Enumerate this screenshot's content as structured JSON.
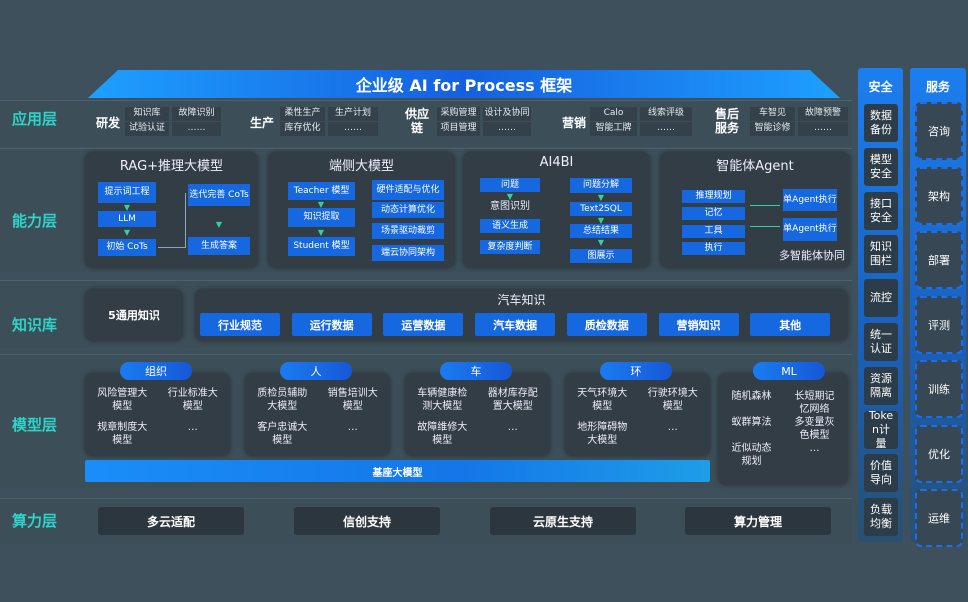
{
  "title": "企业级 AI for Process 框架",
  "layers": {
    "app": "应用层",
    "capability": "能力层",
    "knowledge": "知识库",
    "model": "模型层",
    "compute": "算力层"
  },
  "app_groups": [
    {
      "name": "研发",
      "items": [
        "知识库",
        "故障识别",
        "试验认证",
        "……"
      ]
    },
    {
      "name": "生产",
      "items": [
        "柔性生产",
        "生产计划",
        "库存优化",
        "……"
      ]
    },
    {
      "name": "供应链",
      "items": [
        "采购管理",
        "设计及协同",
        "项目管理",
        "……"
      ]
    },
    {
      "name": "营销",
      "items": [
        "Calo",
        "线索评级",
        "智能工牌",
        "……"
      ]
    },
    {
      "name": "售后服务",
      "items": [
        "车智见",
        "故障预警",
        "智能诊修",
        "……"
      ]
    }
  ],
  "capabilities": {
    "rag": {
      "title": "RAG+推理大模型",
      "boxes": [
        "提示词工程",
        "LLM",
        "初始 CoTs",
        "迭代完善 CoTs",
        "生成答案"
      ]
    },
    "edge": {
      "title": "端侧大模型",
      "boxes": [
        "Teacher 模型",
        "知识提取",
        "Student 模型",
        "硬件适配与优化",
        "动态计算优化",
        "场景驱动裁剪",
        "端云协同架构"
      ]
    },
    "ai4bi": {
      "title": "AI4BI",
      "boxes": [
        "问题",
        "意图识别",
        "语义生成",
        "复杂度判断",
        "问题分解",
        "Text2SQL",
        "总结结果",
        "图展示"
      ]
    },
    "agent": {
      "title": "智能体Agent",
      "boxes": [
        "推理规划",
        "记忆",
        "工具",
        "执行",
        "单Agent执行",
        "单Agent执行"
      ],
      "footer": "多智能体协同"
    }
  },
  "knowledge": {
    "general": "5通用知识",
    "auto_title": "汽车知识",
    "items": [
      "行业规范",
      "运行数据",
      "运营数据",
      "汽车数据",
      "质检数据",
      "营销知识",
      "其他"
    ]
  },
  "models": [
    {
      "tag": "组织",
      "items": [
        "风险管理大模型",
        "行业标准大模型",
        "规章制度大模型",
        "…"
      ]
    },
    {
      "tag": "人",
      "items": [
        "质检员辅助大模型",
        "销售培训大模型",
        "客户忠诚大模型",
        "…"
      ]
    },
    {
      "tag": "车",
      "items": [
        "车辆健康检测大模型",
        "器材库存配置大模型",
        "故障维修大模型",
        "…"
      ]
    },
    {
      "tag": "环",
      "items": [
        "天气环境大模型",
        "行驶环境大模型",
        "地形障碍物大模型",
        "…"
      ]
    },
    {
      "tag": "ML",
      "items": [
        "随机森林",
        "长短期记忆网络",
        "蚁群算法",
        "多变量灰色模型",
        "近似动态规划",
        "…"
      ]
    }
  ],
  "base_model": "基座大模型",
  "compute": [
    "多云适配",
    "信创支持",
    "云原生支持",
    "算力管理"
  ],
  "security": {
    "title": "安全",
    "items": [
      "数据备份",
      "模型安全",
      "接口安全",
      "知识围栏",
      "流控",
      "统一认证",
      "资源隔离",
      "Token计量",
      "价值导向",
      "负载均衡"
    ]
  },
  "service": {
    "title": "服务",
    "items": [
      "咨询",
      "架构",
      "部署",
      "评测",
      "训练",
      "优化",
      "运维"
    ]
  },
  "colors": {
    "background": "#3e505b",
    "accent_blue": "#1668e0",
    "layer_label": "#2fd3c8"
  }
}
